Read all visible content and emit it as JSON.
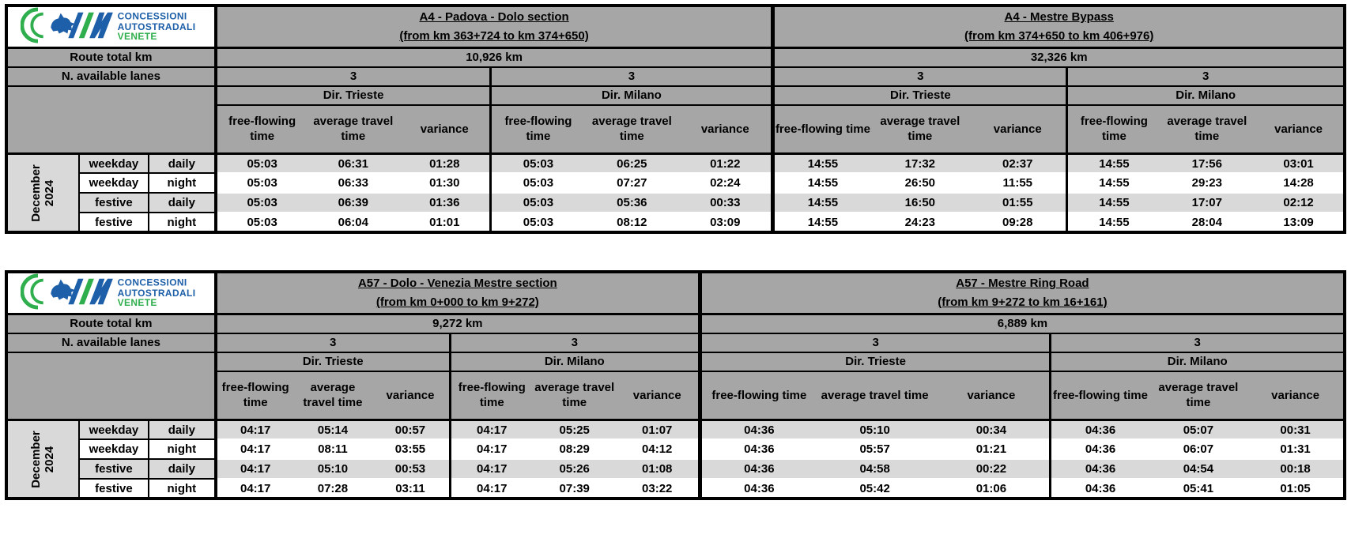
{
  "colors": {
    "header_gray": "#a6a6a6",
    "row_gray": "#d9d9d9",
    "row_white": "#ffffff",
    "border_black": "#000000",
    "logo_blue": "#1d5fa8",
    "logo_green": "#2fae4d"
  },
  "logo": {
    "text_lines": [
      "CONCESSIONI",
      "AUTOSTRADALI",
      "VENETE"
    ]
  },
  "shared": {
    "route_total_label": "Route total km",
    "lanes_label": "N. available lanes",
    "period_lines": [
      "December",
      "2024"
    ],
    "column_headers": [
      "free-flowing time",
      "average travel time",
      "variance"
    ]
  },
  "tables": [
    {
      "id": "a4",
      "sections": [
        {
          "title": "A4 - Padova - Dolo section",
          "km_range": "(from km 363+724 to km 374+650)",
          "route_total_km": "10,926 km",
          "directions": [
            "Dir. Trieste",
            "Dir. Milano"
          ],
          "lanes": [
            "3",
            "3"
          ]
        },
        {
          "title": "A4 - Mestre Bypass",
          "km_range": "(from km 374+650 to km 406+976)",
          "route_total_km": "32,326 km",
          "directions": [
            "Dir. Trieste",
            "Dir. Milano"
          ],
          "lanes": [
            "3",
            "3"
          ]
        }
      ],
      "rows": [
        {
          "labels": [
            "weekday",
            "daily"
          ],
          "values": [
            "05:03",
            "06:31",
            "01:28",
            "05:03",
            "06:25",
            "01:22",
            "14:55",
            "17:32",
            "02:37",
            "14:55",
            "17:56",
            "03:01"
          ]
        },
        {
          "labels": [
            "weekday",
            "night"
          ],
          "values": [
            "05:03",
            "06:33",
            "01:30",
            "05:03",
            "07:27",
            "02:24",
            "14:55",
            "26:50",
            "11:55",
            "14:55",
            "29:23",
            "14:28"
          ]
        },
        {
          "labels": [
            "festive",
            "daily"
          ],
          "values": [
            "05:03",
            "06:39",
            "01:36",
            "05:03",
            "05:36",
            "00:33",
            "14:55",
            "16:50",
            "01:55",
            "14:55",
            "17:07",
            "02:12"
          ]
        },
        {
          "labels": [
            "festive",
            "night"
          ],
          "values": [
            "05:03",
            "06:04",
            "01:01",
            "05:03",
            "08:12",
            "03:09",
            "14:55",
            "24:23",
            "09:28",
            "14:55",
            "28:04",
            "13:09"
          ]
        }
      ]
    },
    {
      "id": "a57",
      "sections": [
        {
          "title": "A57 - Dolo - Venezia Mestre section",
          "km_range": "(from km 0+000 to km 9+272)",
          "route_total_km": "9,272 km",
          "directions": [
            "Dir. Trieste",
            "Dir. Milano"
          ],
          "lanes": [
            "3",
            "3"
          ]
        },
        {
          "title": "A57 - Mestre Ring Road",
          "km_range": "(from km 9+272 to km 16+161)",
          "route_total_km": "6,889 km",
          "directions": [
            "Dir. Trieste",
            "Dir. Milano"
          ],
          "lanes": [
            "3",
            "3"
          ]
        }
      ],
      "rows": [
        {
          "labels": [
            "weekday",
            "daily"
          ],
          "values": [
            "04:17",
            "05:14",
            "00:57",
            "04:17",
            "05:25",
            "01:07",
            "04:36",
            "05:10",
            "00:34",
            "04:36",
            "05:07",
            "00:31"
          ]
        },
        {
          "labels": [
            "weekday",
            "night"
          ],
          "values": [
            "04:17",
            "08:11",
            "03:55",
            "04:17",
            "08:29",
            "04:12",
            "04:36",
            "05:57",
            "01:21",
            "04:36",
            "06:07",
            "01:31"
          ]
        },
        {
          "labels": [
            "festive",
            "daily"
          ],
          "values": [
            "04:17",
            "05:10",
            "00:53",
            "04:17",
            "05:26",
            "01:08",
            "04:36",
            "04:58",
            "00:22",
            "04:36",
            "04:54",
            "00:18"
          ]
        },
        {
          "labels": [
            "festive",
            "night"
          ],
          "values": [
            "04:17",
            "07:28",
            "03:11",
            "04:17",
            "07:39",
            "03:22",
            "04:36",
            "05:42",
            "01:06",
            "04:36",
            "05:41",
            "01:05"
          ]
        }
      ]
    }
  ]
}
